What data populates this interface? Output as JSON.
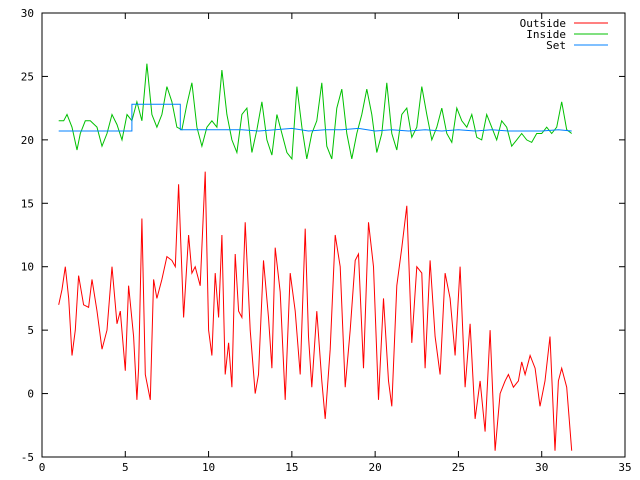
{
  "chart_data": {
    "type": "line",
    "title": "",
    "xlabel": "",
    "ylabel": "",
    "xlim": [
      0,
      35
    ],
    "ylim": [
      -5,
      30
    ],
    "x_ticks": [
      "0",
      "5",
      "10",
      "15",
      "20",
      "25",
      "30",
      "35"
    ],
    "y_ticks": [
      "-5",
      "0",
      "5",
      "10",
      "15",
      "20",
      "25",
      "30"
    ],
    "grid": false,
    "legend_position": "top-right",
    "series": [
      {
        "name": "Outside",
        "color": "#ff0000",
        "x": [
          1.0,
          1.2,
          1.4,
          1.6,
          1.8,
          2.0,
          2.2,
          2.5,
          2.8,
          3.0,
          3.3,
          3.6,
          3.9,
          4.2,
          4.5,
          4.7,
          5.0,
          5.2,
          5.5,
          5.7,
          5.8,
          6.0,
          6.2,
          6.5,
          6.7,
          6.9,
          7.2,
          7.5,
          7.8,
          8.0,
          8.2,
          8.5,
          8.8,
          9.0,
          9.2,
          9.5,
          9.8,
          10.0,
          10.2,
          10.4,
          10.6,
          10.8,
          11.0,
          11.2,
          11.4,
          11.6,
          11.8,
          12.0,
          12.2,
          12.5,
          12.8,
          13.0,
          13.3,
          13.6,
          13.8,
          14.0,
          14.3,
          14.6,
          14.9,
          15.2,
          15.5,
          15.8,
          16.0,
          16.2,
          16.5,
          16.8,
          17.0,
          17.3,
          17.6,
          17.9,
          18.2,
          18.5,
          18.8,
          19.0,
          19.3,
          19.6,
          19.9,
          20.2,
          20.5,
          20.8,
          21.0,
          21.3,
          21.6,
          21.9,
          22.2,
          22.5,
          22.8,
          23.0,
          23.3,
          23.6,
          23.9,
          24.2,
          24.5,
          24.8,
          25.1,
          25.4,
          25.7,
          26.0,
          26.3,
          26.6,
          26.9,
          27.2,
          27.5,
          27.8,
          28.0,
          28.3,
          28.6,
          28.8,
          29.0,
          29.3,
          29.6,
          29.9,
          30.2,
          30.5,
          30.8,
          31.0,
          31.2,
          31.5,
          31.8
        ],
        "values": [
          7.0,
          8.2,
          10.0,
          7.5,
          3.0,
          5.0,
          9.3,
          7.0,
          6.8,
          9.0,
          6.5,
          3.5,
          5.0,
          10.0,
          5.5,
          6.5,
          1.8,
          8.5,
          4.5,
          -0.5,
          2.0,
          13.8,
          1.5,
          -0.5,
          9.0,
          7.5,
          9.0,
          10.8,
          10.5,
          10.0,
          16.5,
          6.0,
          12.5,
          9.5,
          10.0,
          8.5,
          17.5,
          5.0,
          3.0,
          9.5,
          6.0,
          12.5,
          1.5,
          4.0,
          0.5,
          11.0,
          6.5,
          6.0,
          13.5,
          5.0,
          0.0,
          1.5,
          10.5,
          6.0,
          2.0,
          11.5,
          8.0,
          -0.5,
          9.5,
          6.5,
          1.5,
          13.0,
          4.5,
          0.5,
          6.5,
          1.0,
          -2.0,
          3.5,
          12.5,
          10.0,
          0.5,
          5.0,
          10.5,
          11.0,
          2.0,
          13.5,
          10.0,
          -0.5,
          7.5,
          1.0,
          -1.0,
          8.5,
          11.5,
          14.8,
          4.0,
          10.0,
          9.5,
          2.0,
          10.5,
          4.5,
          1.5,
          9.5,
          7.5,
          3.0,
          10.0,
          0.5,
          5.5,
          -2.0,
          1.0,
          -3.0,
          5.0,
          -4.5,
          0.0,
          1.0,
          1.5,
          0.5,
          1.0,
          2.5,
          1.5,
          3.0,
          2.0,
          -1.0,
          1.0,
          4.5,
          -4.5,
          1.0,
          2.0,
          0.5,
          -4.5
        ]
      },
      {
        "name": "Inside",
        "color": "#00c000",
        "x": [
          1.0,
          1.3,
          1.5,
          1.8,
          2.1,
          2.3,
          2.6,
          2.9,
          3.3,
          3.6,
          3.9,
          4.2,
          4.5,
          4.8,
          5.1,
          5.4,
          5.7,
          6.0,
          6.3,
          6.6,
          6.9,
          7.2,
          7.5,
          7.8,
          8.1,
          8.4,
          8.7,
          9.0,
          9.3,
          9.6,
          9.9,
          10.2,
          10.5,
          10.8,
          11.1,
          11.4,
          11.7,
          12.0,
          12.3,
          12.6,
          12.9,
          13.2,
          13.5,
          13.8,
          14.1,
          14.4,
          14.7,
          15.0,
          15.3,
          15.6,
          15.9,
          16.2,
          16.5,
          16.8,
          17.1,
          17.4,
          17.7,
          18.0,
          18.3,
          18.6,
          18.9,
          19.2,
          19.5,
          19.8,
          20.1,
          20.4,
          20.7,
          21.0,
          21.3,
          21.6,
          21.9,
          22.2,
          22.5,
          22.8,
          23.1,
          23.4,
          23.7,
          24.0,
          24.3,
          24.6,
          24.9,
          25.2,
          25.5,
          25.8,
          26.1,
          26.4,
          26.7,
          27.0,
          27.3,
          27.6,
          27.9,
          28.2,
          28.5,
          28.8,
          29.1,
          29.4,
          29.7,
          30.0,
          30.3,
          30.6,
          30.9,
          31.2,
          31.5,
          31.8
        ],
        "values": [
          21.5,
          21.5,
          22.0,
          21.0,
          19.2,
          20.5,
          21.5,
          21.5,
          21.0,
          19.5,
          20.5,
          22.0,
          21.2,
          20.0,
          22.0,
          21.5,
          23.0,
          21.5,
          26.0,
          22.0,
          21.0,
          22.0,
          24.2,
          23.0,
          21.0,
          20.8,
          22.8,
          24.5,
          21.0,
          19.5,
          21.0,
          21.5,
          21.0,
          25.5,
          22.0,
          20.0,
          19.0,
          22.0,
          22.5,
          19.0,
          20.8,
          23.0,
          20.0,
          18.8,
          22.0,
          20.5,
          19.0,
          18.5,
          24.2,
          21.0,
          18.5,
          20.5,
          21.5,
          24.5,
          19.5,
          18.5,
          22.5,
          24.0,
          20.5,
          18.5,
          20.5,
          22.0,
          24.0,
          22.0,
          19.0,
          20.5,
          24.5,
          20.5,
          19.2,
          22.0,
          22.5,
          20.2,
          21.0,
          24.2,
          22.0,
          20.0,
          21.0,
          22.5,
          20.5,
          19.8,
          22.5,
          21.5,
          21.0,
          22.0,
          20.2,
          20.0,
          22.0,
          21.0,
          20.0,
          21.5,
          21.0,
          19.5,
          20.0,
          20.5,
          20.0,
          19.8,
          20.5,
          20.5,
          21.0,
          20.5,
          21.0,
          23.0,
          20.8,
          20.5
        ]
      },
      {
        "name": "Set",
        "color": "#0080ff",
        "x": [
          1.0,
          5.4,
          5.4,
          8.3,
          8.3,
          12.0,
          13.0,
          14.0,
          15.0,
          16.0,
          17.0,
          18.0,
          19.0,
          20.0,
          21.0,
          22.0,
          23.0,
          24.0,
          25.0,
          26.0,
          27.0,
          28.0,
          29.0,
          30.0,
          31.0,
          31.8
        ],
        "values": [
          20.7,
          20.7,
          22.8,
          22.8,
          20.8,
          20.8,
          20.7,
          20.8,
          20.9,
          20.7,
          20.8,
          20.8,
          20.9,
          20.7,
          20.8,
          20.7,
          20.8,
          20.7,
          20.8,
          20.7,
          20.8,
          20.7,
          20.7,
          20.7,
          20.8,
          20.7
        ]
      }
    ]
  }
}
